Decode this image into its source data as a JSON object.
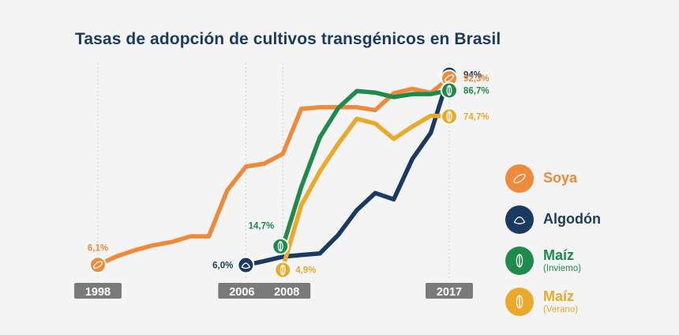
{
  "chart_data": {
    "type": "line",
    "title": "Tasas de adopción de cultivos transgénicos en Brasil",
    "x_axis_labels": [
      "1998",
      "2006",
      "2008",
      "2017"
    ],
    "xlim": [
      1998,
      2017
    ],
    "ylim": [
      0,
      100
    ],
    "grid": false,
    "legend_position": "right",
    "series": [
      {
        "key": "soya",
        "name": "Soya",
        "sub": "",
        "color": "#ef8a3a",
        "icon": "soybean-pod-icon",
        "x": [
          1998,
          1999,
          2000,
          2001,
          2002,
          2003,
          2004,
          2005,
          2006,
          2007,
          2008,
          2009,
          2010,
          2011,
          2012,
          2013,
          2014,
          2015,
          2016,
          2017
        ],
        "y": [
          6.1,
          10,
          12.9,
          15.2,
          16.7,
          19.3,
          19.3,
          40.6,
          51.5,
          52.9,
          57.4,
          78.2,
          78.9,
          78.9,
          78.9,
          77.6,
          85.4,
          87.4,
          85.6,
          92.3
        ],
        "start_label": "6,1%",
        "end_label": "92,3%"
      },
      {
        "key": "algodon",
        "name": "Algodón",
        "sub": "",
        "color": "#1b3a5f",
        "icon": "cotton-flower-icon",
        "x": [
          2006,
          2007,
          2008,
          2009,
          2010,
          2011,
          2012,
          2013,
          2014,
          2015,
          2016,
          2017
        ],
        "y": [
          6.0,
          7.9,
          9.9,
          10.7,
          11.4,
          20.0,
          31.4,
          39.3,
          36.4,
          55.0,
          67.1,
          94
        ],
        "start_label": "6,0%",
        "end_label": "94%"
      },
      {
        "key": "maiz_invierno",
        "name": "Maíz",
        "sub": "(Inviemo)",
        "color": "#1e8a4c",
        "icon": "corn-cob-icon",
        "x": [
          2008,
          2009,
          2010,
          2011,
          2012,
          2013,
          2014,
          2015,
          2016,
          2017
        ],
        "y": [
          14.7,
          42.1,
          65.0,
          78.6,
          86.4,
          85.7,
          83.6,
          85.0,
          85.0,
          86.7
        ],
        "start_label": "14,7%",
        "end_label": "86,7%"
      },
      {
        "key": "maiz_verano",
        "name": "Maíz",
        "sub": "(Verano)",
        "color": "#eaa92a",
        "icon": "corn-cob-icon",
        "x": [
          2008,
          2009,
          2010,
          2011,
          2012,
          2013,
          2014,
          2015,
          2016,
          2017
        ],
        "y": [
          4.9,
          33.6,
          49.3,
          62.1,
          73.6,
          71.4,
          64.3,
          70.0,
          75.0,
          74.7
        ],
        "start_label": "4,9%",
        "end_label": "74,7%"
      }
    ]
  }
}
